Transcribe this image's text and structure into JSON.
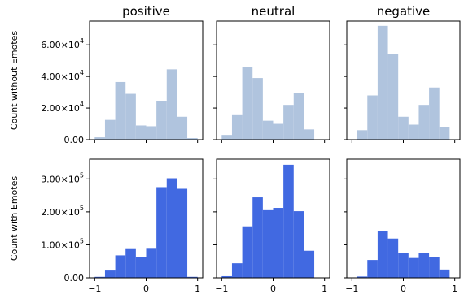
{
  "chart_data": [
    {
      "type": "histogram",
      "row": "without",
      "title": "positive",
      "ylabel": "Count without Emotes",
      "color": "#b0c4de",
      "xlim": [
        -1.1,
        1.1
      ],
      "ylim": [
        0,
        75000
      ],
      "xticks": [
        -1,
        0,
        1
      ],
      "yticks": [
        0,
        20000,
        40000,
        60000
      ],
      "ytick_labels": [
        {
          "mant": "0.00",
          "exp": ""
        },
        {
          "mant": "2.00×10",
          "exp": "4"
        },
        {
          "mant": "4.00×10",
          "exp": "4"
        },
        {
          "mant": "6.00×10",
          "exp": "4"
        }
      ],
      "bin_edges": [
        -1.0,
        -0.8,
        -0.6,
        -0.4,
        -0.2,
        0.0,
        0.2,
        0.4,
        0.6,
        0.8,
        1.0
      ],
      "values": [
        1500,
        12500,
        36500,
        29000,
        9000,
        8500,
        24500,
        44500,
        14500,
        1000
      ]
    },
    {
      "type": "histogram",
      "row": "without",
      "title": "neutral",
      "color": "#b0c4de",
      "xlim": [
        -1.1,
        1.1
      ],
      "ylim": [
        0,
        75000
      ],
      "xticks": [
        -1,
        0,
        1
      ],
      "yticks": [
        0,
        20000,
        40000,
        60000
      ],
      "bin_edges": [
        -1.0,
        -0.8,
        -0.6,
        -0.4,
        -0.2,
        0.0,
        0.2,
        0.4,
        0.6,
        0.8,
        1.0
      ],
      "values": [
        3000,
        15500,
        46000,
        39000,
        12000,
        10000,
        22000,
        29500,
        6500,
        0
      ]
    },
    {
      "type": "histogram",
      "row": "without",
      "title": "negative",
      "color": "#b0c4de",
      "xlim": [
        -1.1,
        1.1
      ],
      "ylim": [
        0,
        75000
      ],
      "xticks": [
        -1,
        0,
        1
      ],
      "yticks": [
        0,
        20000,
        40000,
        60000
      ],
      "bin_edges": [
        -0.9,
        -0.7,
        -0.5,
        -0.3,
        -0.1,
        0.1,
        0.3,
        0.5,
        0.7,
        0.9
      ],
      "values": [
        6000,
        28000,
        72000,
        54000,
        14500,
        9500,
        22000,
        33000,
        8000
      ]
    },
    {
      "type": "histogram",
      "row": "with",
      "title": "",
      "ylabel": "Count with Emotes",
      "color": "#4169e1",
      "xlim": [
        -1.1,
        1.1
      ],
      "ylim": [
        0,
        360000
      ],
      "xticks": [
        -1,
        0,
        1
      ],
      "yticks": [
        0,
        100000,
        200000,
        300000
      ],
      "xtick_labels": [
        "−1",
        "0",
        "1"
      ],
      "ytick_labels": [
        {
          "mant": "0.00",
          "exp": ""
        },
        {
          "mant": "1.00×10",
          "exp": "5"
        },
        {
          "mant": "2.00×10",
          "exp": "5"
        },
        {
          "mant": "3.00×10",
          "exp": "5"
        }
      ],
      "bin_edges": [
        -1.0,
        -0.8,
        -0.6,
        -0.4,
        -0.2,
        0.0,
        0.2,
        0.4,
        0.6,
        0.8,
        1.0
      ],
      "values": [
        3000,
        22000,
        68000,
        87000,
        62000,
        88000,
        275000,
        302000,
        270000,
        3000
      ]
    },
    {
      "type": "histogram",
      "row": "with",
      "title": "",
      "color": "#4169e1",
      "xlim": [
        -1.1,
        1.1
      ],
      "ylim": [
        0,
        360000
      ],
      "xticks": [
        -1,
        0,
        1
      ],
      "yticks": [
        0,
        100000,
        200000,
        300000
      ],
      "xtick_labels": [
        "−1",
        "0",
        "1"
      ],
      "bin_edges": [
        -1.0,
        -0.8,
        -0.6,
        -0.4,
        -0.2,
        0.0,
        0.2,
        0.4,
        0.6,
        0.8,
        1.0
      ],
      "values": [
        5000,
        44000,
        156000,
        244000,
        205000,
        212000,
        343000,
        202000,
        82000,
        0
      ]
    },
    {
      "type": "histogram",
      "row": "with",
      "title": "",
      "color": "#4169e1",
      "xlim": [
        -1.1,
        1.1
      ],
      "ylim": [
        0,
        360000
      ],
      "xticks": [
        -1,
        0,
        1
      ],
      "yticks": [
        0,
        100000,
        200000,
        300000
      ],
      "xtick_labels": [
        "−1",
        "0",
        "1"
      ],
      "bin_edges": [
        -0.9,
        -0.7,
        -0.5,
        -0.3,
        -0.1,
        0.1,
        0.3,
        0.5,
        0.7,
        0.9
      ],
      "values": [
        4000,
        54000,
        142000,
        119000,
        76000,
        60000,
        76000,
        63000,
        25000
      ]
    }
  ]
}
